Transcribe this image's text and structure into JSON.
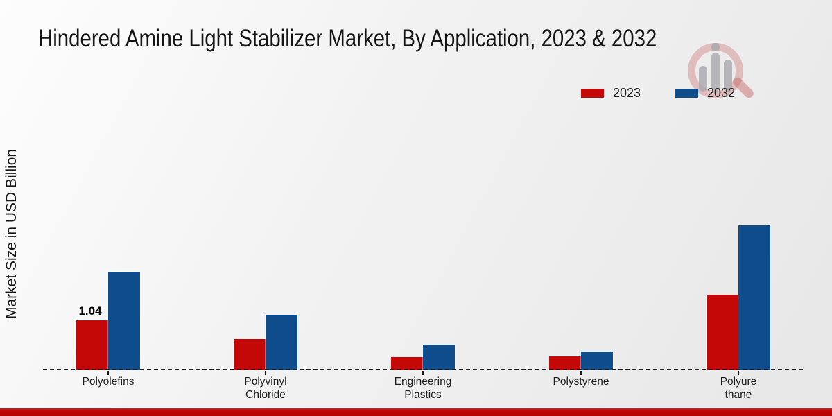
{
  "title": "Hindered Amine Light Stabilizer Market, By Application, 2023 & 2032",
  "y_axis": {
    "label": "Market Size in USD Billion"
  },
  "legend": {
    "items": [
      {
        "label": "2023",
        "color": "#c40707"
      },
      {
        "label": "2032",
        "color": "#0e4c8c"
      }
    ]
  },
  "watermark": {
    "icon": "magnifier-bar-chart-logo"
  },
  "footer": {
    "accent_color": "#c00404"
  },
  "chart_data": {
    "type": "bar",
    "title": "Hindered Amine Light Stabilizer Market, By Application, 2023 & 2032",
    "xlabel": "",
    "ylabel": "Market Size in USD Billion",
    "categories": [
      "Polyolefins",
      "Polyvinyl Chloride",
      "Engineering Plastics",
      "Polystyrene",
      "Polyurethane"
    ],
    "category_label_lines": [
      [
        "Polyolefins"
      ],
      [
        "Polyvinyl",
        "Chloride"
      ],
      [
        "Engineering",
        "Plastics"
      ],
      [
        "Polystyrene"
      ],
      [
        "Polyure",
        "thane"
      ]
    ],
    "series": [
      {
        "name": "2023",
        "color": "#c40707",
        "values": [
          1.04,
          0.65,
          0.28,
          0.29,
          1.58
        ]
      },
      {
        "name": "2032",
        "color": "#0e4c8c",
        "values": [
          2.05,
          1.16,
          0.54,
          0.39,
          3.02
        ]
      }
    ],
    "data_labels": [
      {
        "series": "2023",
        "category": "Polyolefins",
        "text": "1.04"
      }
    ],
    "ylim": [
      0,
      3.5
    ],
    "grid": false,
    "axis_style": "dashed-baseline-only",
    "legend_position": "top-right"
  }
}
